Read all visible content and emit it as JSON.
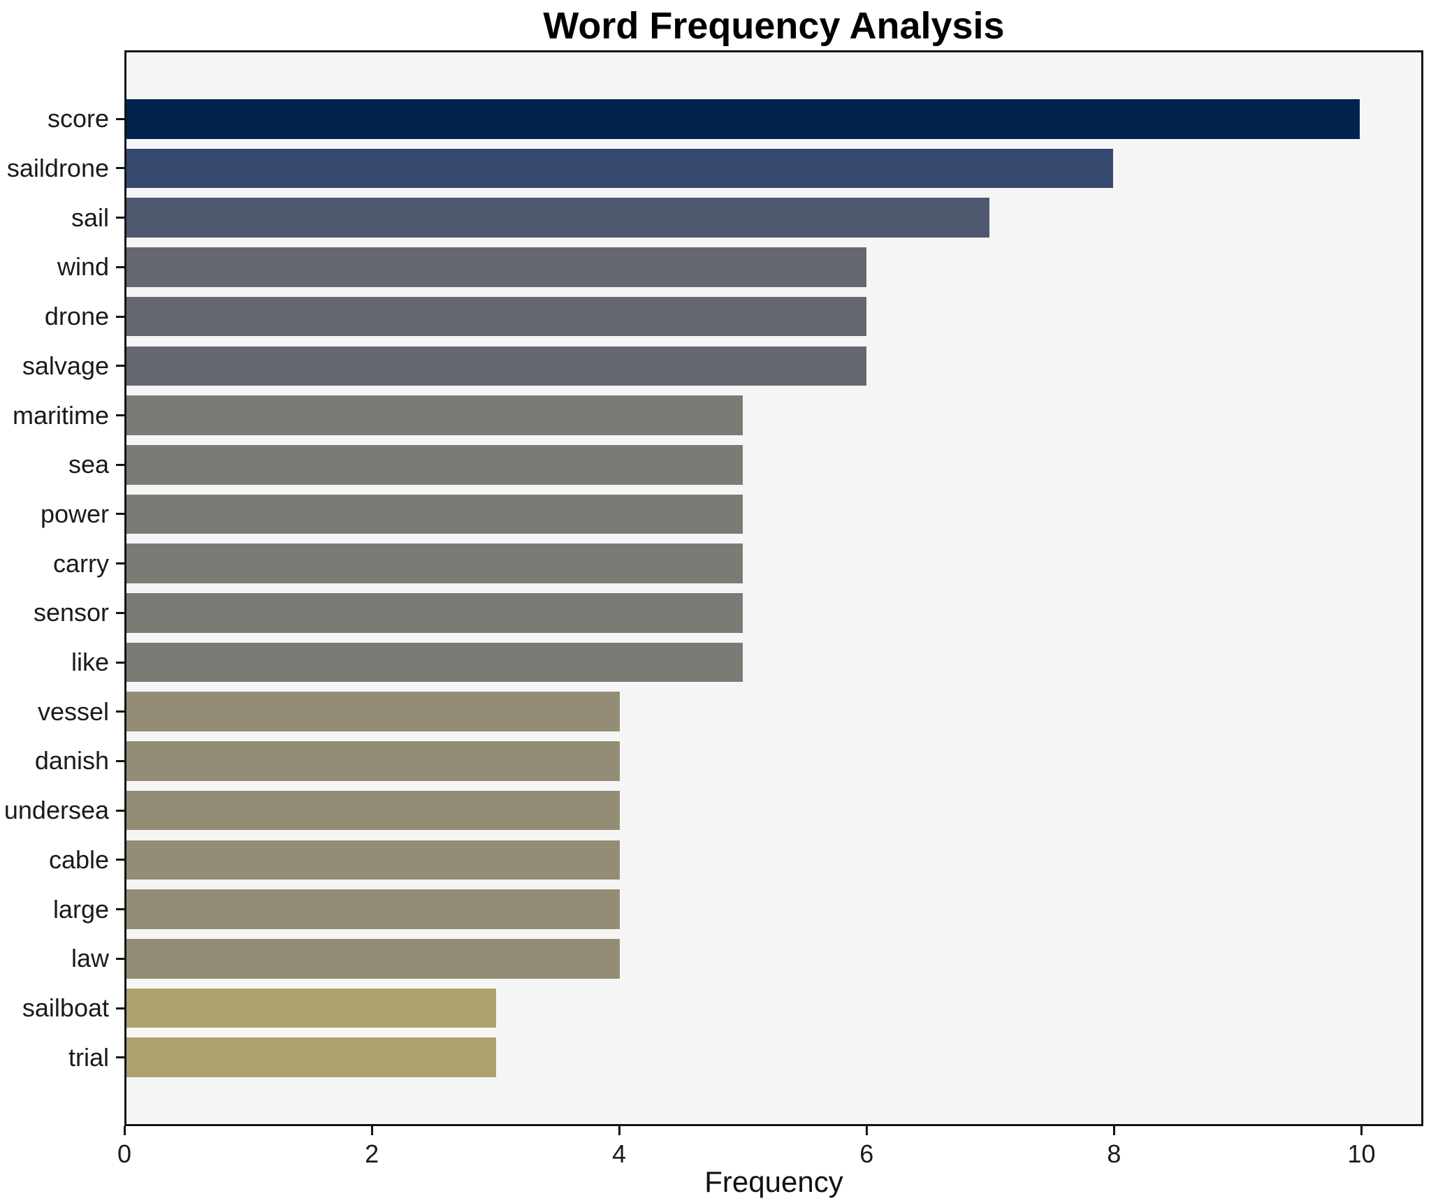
{
  "chart_data": {
    "type": "bar",
    "orientation": "horizontal",
    "title": "Word Frequency Analysis",
    "xlabel": "Frequency",
    "ylabel": "",
    "categories": [
      "score",
      "saildrone",
      "sail",
      "wind",
      "drone",
      "salvage",
      "maritime",
      "sea",
      "power",
      "carry",
      "sensor",
      "like",
      "vessel",
      "danish",
      "undersea",
      "cable",
      "large",
      "law",
      "sailboat",
      "trial"
    ],
    "values": [
      10,
      8,
      7,
      6,
      6,
      6,
      5,
      5,
      5,
      5,
      5,
      5,
      4,
      4,
      4,
      4,
      4,
      4,
      3,
      3
    ],
    "bar_colors": [
      "#02234e",
      "#36496f",
      "#4d576d",
      "#65686f",
      "#65686f",
      "#65686f",
      "#7b7a74",
      "#7b7a74",
      "#7b7a74",
      "#7b7a74",
      "#7b7a74",
      "#7b7a74",
      "#948d75",
      "#948d75",
      "#948d75",
      "#948d75",
      "#948d75",
      "#948d75",
      "#ada26d",
      "#ada26d"
    ],
    "xlim": [
      0,
      10.5
    ],
    "xticks": [
      "0",
      "2",
      "4",
      "6",
      "8",
      "10"
    ],
    "xtick_values": [
      0,
      2,
      4,
      6,
      8,
      10
    ],
    "grid": false,
    "legend_position": "none",
    "plot_background": "#f6f5f6",
    "figure_background": "#ffffff",
    "spine_color": "#141414"
  }
}
